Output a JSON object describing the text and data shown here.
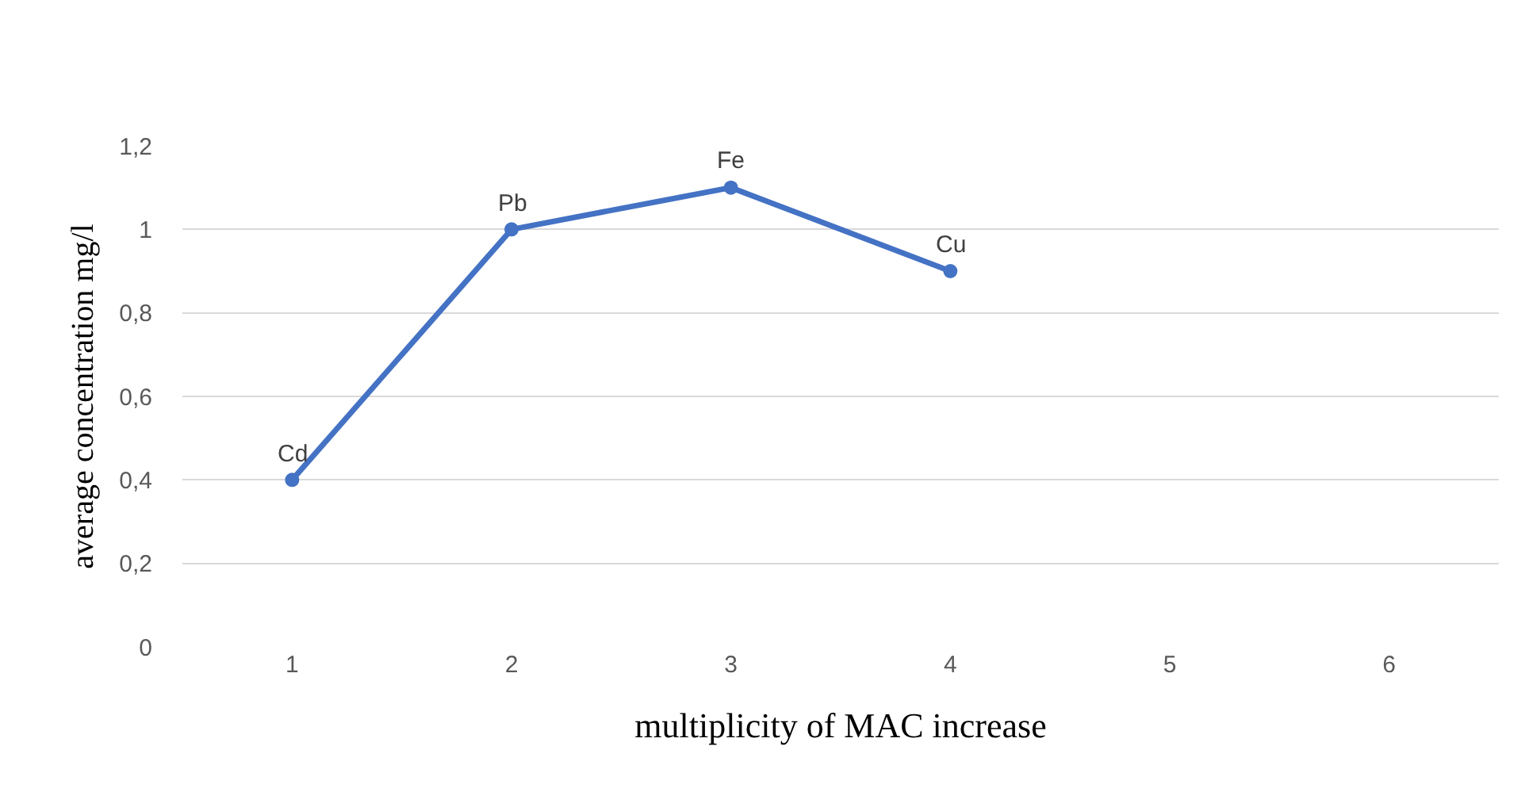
{
  "chart_data": {
    "type": "line",
    "xlabel": "multiplicity of MAC increase",
    "ylabel": "average concentration mg/l",
    "x": [
      1,
      2,
      3,
      4
    ],
    "series": [
      {
        "color": "#4472c4",
        "values": [
          0.4,
          1.0,
          1.1,
          0.9
        ]
      }
    ],
    "xlim": [
      0.5,
      6.5
    ],
    "xticks": [
      1,
      2,
      3,
      4,
      5,
      6
    ],
    "ylim": [
      0,
      1.2
    ],
    "yticks": [
      0,
      {
        "value": 0.2,
        "label": "0,2"
      },
      {
        "value": 0.4,
        "label": "0,4"
      },
      {
        "value": 0.6,
        "label": "0,6"
      },
      {
        "value": 0.8,
        "label": "0,8"
      },
      1,
      {
        "value": 1.2,
        "label": "1,2"
      }
    ],
    "annotations": [
      {
        "text": "Cd",
        "x": 1,
        "y": 0.4
      },
      {
        "text": "Pb",
        "x": 2,
        "y": 1.0
      },
      {
        "text": "Fe",
        "x": 3,
        "y": 1.1
      },
      {
        "text": "Cu",
        "x": 4,
        "y": 0.9
      }
    ],
    "grid": "y",
    "marker": "circle",
    "line_style": "solid",
    "legend": false
  }
}
